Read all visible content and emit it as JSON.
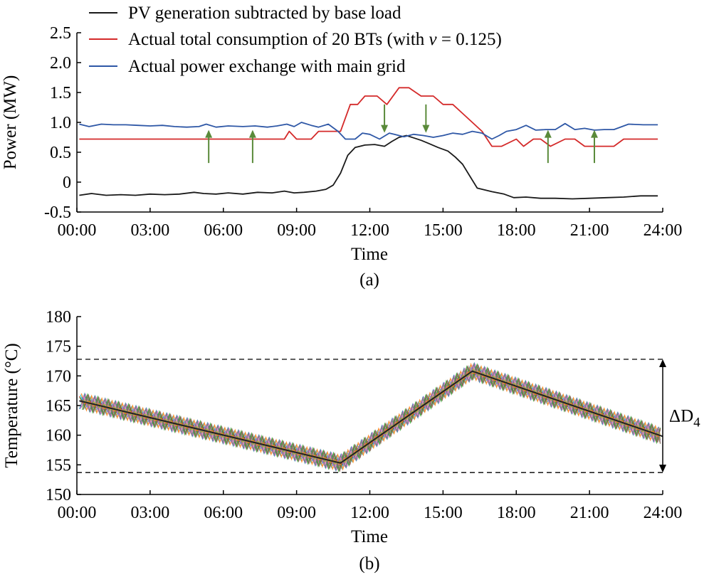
{
  "chart_data": [
    {
      "type": "line",
      "caption": "(a)",
      "title": "",
      "xlabel": "Time",
      "ylabel": "Power (MW)",
      "ylim": [
        -0.5,
        2.5
      ],
      "yticks": [
        "2.5",
        "2.0",
        "1.5",
        "1.0",
        "0.5",
        "0",
        "-0.5"
      ],
      "xticks": [
        "00:00",
        "03:00",
        "06:00",
        "09:00",
        "12:00",
        "15:00",
        "18:00",
        "21:00",
        "24:00"
      ],
      "xrange_hours": [
        0,
        24
      ],
      "grid": false,
      "legend_position": "top",
      "series": [
        {
          "name": "PV generation subtracted by base load",
          "color": "#1a1a1a",
          "x": [
            0.1,
            0.6,
            1.2,
            1.8,
            2.4,
            3.0,
            3.6,
            4.2,
            4.8,
            5.2,
            5.7,
            6.2,
            6.8,
            7.4,
            8.0,
            8.5,
            8.9,
            9.3,
            9.8,
            10.2,
            10.5,
            10.8,
            11.1,
            11.4,
            11.8,
            12.2,
            12.6,
            12.9,
            13.2,
            13.5,
            13.8,
            14.1,
            14.4,
            14.8,
            15.2,
            15.5,
            15.8,
            16.1,
            16.4,
            16.7,
            17.0,
            17.5,
            17.9,
            18.4,
            19.0,
            19.6,
            20.3,
            21.0,
            21.7,
            22.4,
            23.1,
            23.8
          ],
          "y": [
            -0.22,
            -0.19,
            -0.22,
            -0.21,
            -0.22,
            -0.2,
            -0.21,
            -0.2,
            -0.17,
            -0.19,
            -0.2,
            -0.18,
            -0.2,
            -0.17,
            -0.18,
            -0.15,
            -0.18,
            -0.17,
            -0.15,
            -0.12,
            -0.05,
            0.15,
            0.45,
            0.58,
            0.62,
            0.63,
            0.6,
            0.68,
            0.75,
            0.78,
            0.74,
            0.7,
            0.65,
            0.58,
            0.52,
            0.42,
            0.3,
            0.1,
            -0.1,
            -0.13,
            -0.16,
            -0.2,
            -0.26,
            -0.25,
            -0.27,
            -0.27,
            -0.28,
            -0.27,
            -0.26,
            -0.25,
            -0.23,
            -0.23
          ]
        },
        {
          "name": "Actual total consumption of 20 BTs (with v = 0.125)",
          "color": "#d42a2a",
          "x": [
            0.1,
            8.5,
            8.7,
            9.0,
            9.6,
            9.9,
            10.3,
            10.8,
            11.2,
            11.5,
            11.8,
            12.3,
            12.7,
            13.2,
            13.6,
            14.1,
            14.6,
            15.0,
            15.4,
            15.8,
            16.2,
            16.6,
            17.0,
            17.4,
            18.0,
            18.3,
            18.7,
            19.0,
            19.4,
            20.0,
            20.4,
            20.8,
            21.2,
            21.6,
            22.0,
            22.4,
            23.8
          ],
          "y": [
            0.72,
            0.72,
            0.85,
            0.72,
            0.72,
            0.85,
            0.85,
            0.85,
            1.3,
            1.3,
            1.44,
            1.44,
            1.3,
            1.58,
            1.58,
            1.44,
            1.44,
            1.3,
            1.3,
            1.15,
            1.0,
            0.85,
            0.6,
            0.6,
            0.72,
            0.6,
            0.72,
            0.72,
            0.6,
            0.72,
            0.72,
            0.6,
            0.6,
            0.6,
            0.6,
            0.72,
            0.72
          ],
          "arrows": [
            {
              "x": 5.4,
              "direction": "up"
            },
            {
              "x": 7.2,
              "direction": "up"
            },
            {
              "x": 12.6,
              "direction": "down"
            },
            {
              "x": 14.3,
              "direction": "down"
            },
            {
              "x": 19.3,
              "direction": "up"
            },
            {
              "x": 21.2,
              "direction": "up"
            }
          ],
          "arrow_color": "#5a8a3a"
        },
        {
          "name": "Actual power exchange with main grid",
          "color": "#2e57a6",
          "x": [
            0.1,
            0.5,
            1.0,
            1.5,
            2.0,
            2.5,
            3.0,
            3.5,
            4.0,
            4.5,
            5.0,
            5.3,
            5.7,
            6.2,
            6.8,
            7.3,
            7.8,
            8.2,
            8.6,
            8.9,
            9.2,
            9.6,
            9.9,
            10.3,
            10.7,
            11.0,
            11.4,
            11.7,
            12.0,
            12.4,
            12.8,
            13.0,
            13.4,
            13.8,
            14.2,
            14.6,
            15.0,
            15.4,
            15.8,
            16.2,
            16.6,
            17.0,
            17.3,
            17.6,
            18.0,
            18.4,
            18.8,
            19.2,
            19.6,
            20.0,
            20.4,
            20.8,
            21.2,
            21.6,
            22.0,
            22.6,
            23.2,
            23.8
          ],
          "y": [
            0.97,
            0.93,
            0.97,
            0.96,
            0.96,
            0.95,
            0.94,
            0.95,
            0.93,
            0.92,
            0.93,
            0.97,
            0.92,
            0.94,
            0.93,
            0.94,
            0.92,
            0.94,
            0.97,
            0.93,
            1.0,
            0.95,
            0.92,
            0.97,
            0.85,
            0.72,
            0.72,
            0.82,
            0.8,
            0.72,
            0.82,
            0.8,
            0.76,
            0.8,
            0.78,
            0.75,
            0.78,
            0.82,
            0.8,
            0.85,
            0.82,
            0.72,
            0.78,
            0.85,
            0.88,
            0.95,
            0.87,
            0.88,
            0.88,
            0.98,
            0.88,
            0.9,
            0.87,
            0.88,
            0.88,
            0.97,
            0.96,
            0.96
          ]
        }
      ]
    },
    {
      "type": "line",
      "caption": "(b)",
      "title": "",
      "xlabel": "Time",
      "ylabel": "Temperature (°C)",
      "ylim": [
        150,
        180
      ],
      "yticks": [
        "180",
        "175",
        "170",
        "165",
        "160",
        "155",
        "150"
      ],
      "xticks": [
        "00:00",
        "03:00",
        "06:00",
        "09:00",
        "12:00",
        "15:00",
        "18:00",
        "21:00",
        "24:00"
      ],
      "xrange_hours": [
        0,
        24
      ],
      "grid": false,
      "series": [
        {
          "name": "",
          "color": "#222222",
          "x": [
            0.1,
            10.8,
            16.2,
            24
          ],
          "y": [
            165.8,
            155.3,
            170.8,
            159.8
          ]
        }
      ],
      "band_series_count": 20,
      "band_amplitude": 1.4,
      "band_colors": [
        "#d62728",
        "#1f77b4",
        "#2ca02c",
        "#9467bd",
        "#17becf",
        "#e377c2",
        "#8c564b",
        "#bcbd22",
        "#ff7f0e",
        "#7f7f7f"
      ],
      "reference_lines": [
        172.8,
        153.7
      ],
      "annotation": {
        "base": "ΔD",
        "sub": "4"
      }
    }
  ]
}
